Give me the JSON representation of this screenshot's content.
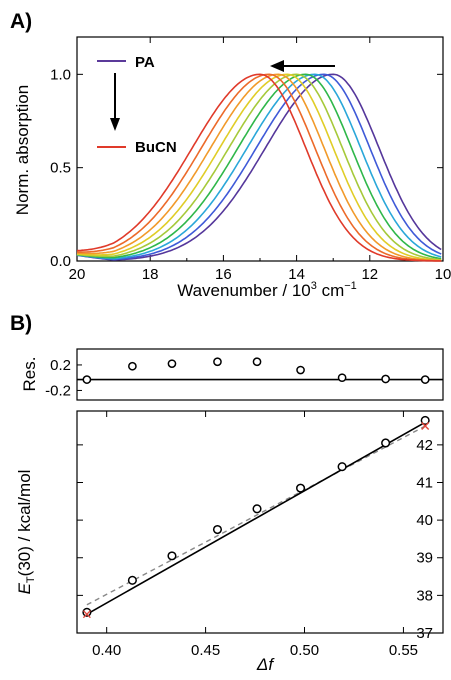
{
  "panels": {
    "a_label": "A)",
    "b_label": "B)"
  },
  "chart_data": [
    {
      "type": "line",
      "panel": "A",
      "xlabel_main": "Wavenumber / 10",
      "xlabel_exp": "3",
      "xlabel_unit": " cm",
      "xlabel_unit_exp": "−1",
      "ylabel": "Norm. absorption",
      "xlim": [
        20,
        10
      ],
      "ylim": [
        0.0,
        1.2
      ],
      "x_ticks": [
        "20",
        "18",
        "16",
        "14",
        "12",
        "10"
      ],
      "x_tick_values": [
        20,
        18,
        16,
        14,
        12,
        10
      ],
      "y_ticks": [
        "0.0",
        "0.5",
        "1.0"
      ],
      "y_tick_values": [
        0.0,
        0.5,
        1.0
      ],
      "legend": {
        "top_label": "PA",
        "bottom_label": "BuCN",
        "top_color": "#5b3a9a",
        "bottom_color": "#e03a2a"
      },
      "series": [
        {
          "peak": 13.0,
          "color": "#55379b"
        },
        {
          "peak": 13.25,
          "color": "#3f5ad8"
        },
        {
          "peak": 13.5,
          "color": "#2aa7d9"
        },
        {
          "peak": 13.75,
          "color": "#2fb74a"
        },
        {
          "peak": 14.0,
          "color": "#a6c93a"
        },
        {
          "peak": 14.25,
          "color": "#e0cd27"
        },
        {
          "peak": 14.5,
          "color": "#f19a2a"
        },
        {
          "peak": 14.75,
          "color": "#ec6a2a"
        },
        {
          "peak": 15.0,
          "color": "#e03a2a"
        }
      ],
      "arrow_note": "peak shifts to higher wavenumber from PA to BuCN"
    },
    {
      "type": "scatter",
      "panel": "B-residuals",
      "ylabel": "Res.",
      "y_ticks": [
        "0.2",
        "-0.2"
      ],
      "y_tick_values": [
        0.2,
        -0.2
      ],
      "ylim": [
        -0.35,
        0.45
      ],
      "x": [
        0.39,
        0.413,
        0.433,
        0.456,
        0.476,
        0.498,
        0.519,
        0.541,
        0.561
      ],
      "residuals": [
        -0.03,
        0.18,
        0.22,
        0.25,
        0.25,
        0.12,
        0.0,
        -0.02,
        -0.03
      ]
    },
    {
      "type": "scatter",
      "panel": "B",
      "ylabel_main": "E",
      "ylabel_sub": "T",
      "ylabel_rest": "(30) / kcal/mol",
      "xlabel": "Δf",
      "xlim": [
        0.385,
        0.57
      ],
      "ylim": [
        37.0,
        42.9
      ],
      "x_ticks": [
        "0.40",
        "0.45",
        "0.50",
        "0.55"
      ],
      "x_tick_values": [
        0.4,
        0.45,
        0.5,
        0.55
      ],
      "y_ticks": [
        "37",
        "38",
        "39",
        "40",
        "41",
        "42"
      ],
      "y_tick_values": [
        37,
        38,
        39,
        40,
        41,
        42
      ],
      "points": [
        {
          "x": 0.39,
          "y": 37.55
        },
        {
          "x": 0.413,
          "y": 38.4
        },
        {
          "x": 0.433,
          "y": 39.05
        },
        {
          "x": 0.456,
          "y": 39.75
        },
        {
          "x": 0.476,
          "y": 40.3
        },
        {
          "x": 0.498,
          "y": 40.85
        },
        {
          "x": 0.519,
          "y": 41.42
        },
        {
          "x": 0.541,
          "y": 42.05
        },
        {
          "x": 0.561,
          "y": 42.65
        }
      ],
      "crosses": [
        {
          "x": 0.39,
          "y": 37.5
        },
        {
          "x": 0.561,
          "y": 42.5
        }
      ],
      "fit_solid": [
        {
          "x": 0.39,
          "y": 37.5
        },
        {
          "x": 0.561,
          "y": 42.6
        }
      ],
      "fit_dashed": [
        {
          "x": 0.39,
          "y": 37.75
        },
        {
          "x": 0.561,
          "y": 42.5
        }
      ],
      "cross_color": "#e0453a",
      "dashed_color": "#888888"
    }
  ]
}
